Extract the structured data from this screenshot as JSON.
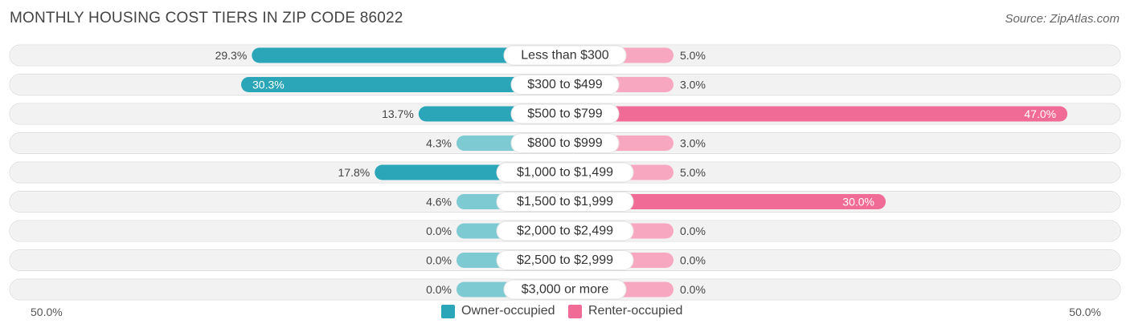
{
  "title": "MONTHLY HOUSING COST TIERS IN ZIP CODE 86022",
  "source": "Source: ZipAtlas.com",
  "colors": {
    "owner": "#2aa6b8",
    "owner_light": "#7ecad3",
    "renter": "#f06b95",
    "renter_light": "#f7a8c0",
    "track": "#f2f2f2"
  },
  "legend": {
    "owner_label": "Owner-occupied",
    "renter_label": "Renter-occupied"
  },
  "axis": {
    "left_label": "50.0%",
    "right_label": "50.0%"
  },
  "chart_data": {
    "type": "bar",
    "orientation": "diverging-horizontal",
    "title": "MONTHLY HOUSING COST TIERS IN ZIP CODE 86022",
    "xlim": [
      -50,
      50
    ],
    "categories": [
      "Less than $300",
      "$300 to $499",
      "$500 to $799",
      "$800 to $999",
      "$1,000 to $1,499",
      "$1,500 to $1,999",
      "$2,000 to $2,499",
      "$2,500 to $2,999",
      "$3,000 or more"
    ],
    "series": [
      {
        "name": "Owner-occupied",
        "values": [
          29.3,
          30.3,
          13.7,
          4.3,
          17.8,
          4.6,
          0.0,
          0.0,
          0.0
        ],
        "labels": [
          "29.3%",
          "30.3%",
          "13.7%",
          "4.3%",
          "17.8%",
          "4.6%",
          "0.0%",
          "0.0%",
          "0.0%"
        ]
      },
      {
        "name": "Renter-occupied",
        "values": [
          5.0,
          3.0,
          47.0,
          3.0,
          5.0,
          30.0,
          0.0,
          0.0,
          0.0
        ],
        "labels": [
          "5.0%",
          "3.0%",
          "47.0%",
          "3.0%",
          "5.0%",
          "30.0%",
          "0.0%",
          "0.0%",
          "0.0%"
        ]
      }
    ],
    "legend_position": "bottom-center"
  }
}
